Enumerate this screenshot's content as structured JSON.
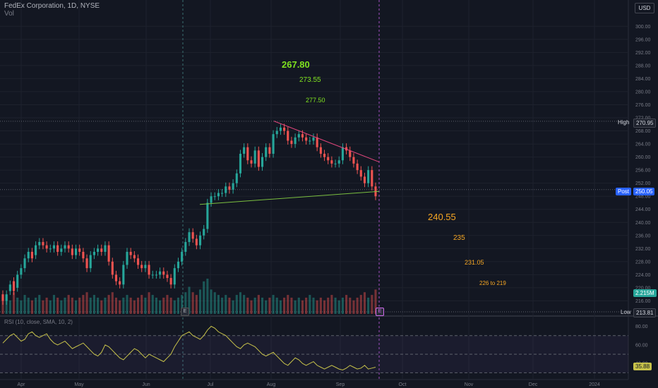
{
  "header": {
    "symbol_line": "FedEx Corporation, 1D, NYSE",
    "volume_label": "Vol",
    "currency_button": "USD"
  },
  "chart_data": {
    "type": "candlestick",
    "y_axis_labels": [
      "300.00",
      "296.00",
      "292.00",
      "288.00",
      "284.00",
      "280.00",
      "276.00",
      "272.00",
      "268.00",
      "264.00",
      "260.00",
      "256.00",
      "252.00",
      "248.00",
      "244.00",
      "240.00",
      "236.00",
      "232.00",
      "228.00",
      "224.00",
      "220.00",
      "216.00"
    ],
    "ylim": [
      212,
      302
    ],
    "x_axis_labels": [
      "Apr",
      "May",
      "Jun",
      "Jul",
      "Aug",
      "Sep",
      "Oct",
      "Nov",
      "Dec",
      "2024"
    ],
    "high_label": "High",
    "high_value": "270.95",
    "post_label": "Post",
    "post_value": "250.05",
    "volume_value": "2.215M",
    "low_label": "Low",
    "low_value": "213.81",
    "earnings_marker": "E",
    "candles_close": [
      216,
      218,
      221,
      219,
      224,
      226,
      229,
      231,
      229,
      233,
      234,
      233,
      232,
      232,
      233,
      231,
      232,
      233,
      232,
      230,
      232,
      231,
      229,
      226,
      230,
      231,
      232,
      231,
      233,
      228,
      224,
      222,
      221,
      227,
      231,
      230,
      229,
      227,
      226,
      227,
      224,
      224,
      224,
      225,
      224,
      223,
      221,
      226,
      228,
      231,
      234,
      237,
      235,
      233,
      236,
      238,
      246,
      248,
      248,
      249,
      249,
      251,
      250,
      252,
      255,
      261,
      263,
      259,
      258,
      262,
      257,
      260,
      263,
      261,
      267,
      268,
      269,
      268,
      265,
      264,
      266,
      267,
      266,
      265,
      265,
      266,
      263,
      261,
      260,
      259,
      258,
      258,
      259,
      263,
      262,
      260,
      258,
      256,
      254,
      252,
      256,
      251,
      248
    ],
    "candles_open": [
      218,
      216,
      219,
      222,
      220,
      224,
      226,
      229,
      231,
      230,
      233,
      234,
      233,
      232,
      232,
      233,
      231,
      232,
      233,
      232,
      230,
      232,
      231,
      229,
      226,
      230,
      231,
      232,
      231,
      233,
      228,
      224,
      222,
      221,
      227,
      231,
      230,
      229,
      227,
      226,
      227,
      224,
      224,
      224,
      225,
      224,
      223,
      221,
      226,
      228,
      231,
      234,
      237,
      235,
      233,
      236,
      238,
      246,
      248,
      248,
      249,
      249,
      251,
      250,
      252,
      255,
      261,
      263,
      259,
      258,
      262,
      257,
      260,
      263,
      261,
      267,
      268,
      269,
      268,
      265,
      264,
      266,
      267,
      266,
      265,
      265,
      266,
      263,
      261,
      260,
      259,
      258,
      258,
      259,
      263,
      262,
      260,
      258,
      256,
      254,
      252,
      256,
      251
    ],
    "volume": [
      0.6,
      0.7,
      0.5,
      0.8,
      0.6,
      0.5,
      0.7,
      0.6,
      0.5,
      0.6,
      0.7,
      0.5,
      0.6,
      0.5,
      0.7,
      0.6,
      0.5,
      0.6,
      0.7,
      0.6,
      0.5,
      0.6,
      0.7,
      0.8,
      0.6,
      0.7,
      0.6,
      0.5,
      0.6,
      0.7,
      0.8,
      0.6,
      0.5,
      0.6,
      0.7,
      0.6,
      0.5,
      0.6,
      0.7,
      0.6,
      0.8,
      0.7,
      0.6,
      0.5,
      0.6,
      0.7,
      0.6,
      0.5,
      0.6,
      0.7,
      0.8,
      1.0,
      0.8,
      0.7,
      0.9,
      1.2,
      1.3,
      0.9,
      0.8,
      0.7,
      0.6,
      0.7,
      0.6,
      0.5,
      0.7,
      0.8,
      0.7,
      0.6,
      0.5,
      0.6,
      0.7,
      0.6,
      0.5,
      0.6,
      0.7,
      0.6,
      0.5,
      0.6,
      0.7,
      0.6,
      0.5,
      0.6,
      0.5,
      0.6,
      0.7,
      0.6,
      0.5,
      0.6,
      0.5,
      0.6,
      0.7,
      0.6,
      0.5,
      0.6,
      0.7,
      0.6,
      0.5,
      0.6,
      0.7,
      0.8,
      0.6,
      0.7,
      0.9
    ],
    "rsi_axis_labels": [
      "80.00",
      "60.00",
      "40.00"
    ],
    "rsi_value": "35.88",
    "rsi_title": "RSI (10, close, SMA, 10, 2)",
    "rsi": [
      62,
      66,
      70,
      72,
      68,
      64,
      66,
      72,
      74,
      70,
      68,
      70,
      72,
      66,
      62,
      60,
      62,
      64,
      60,
      56,
      58,
      60,
      62,
      58,
      54,
      50,
      48,
      52,
      60,
      58,
      54,
      50,
      46,
      44,
      48,
      52,
      56,
      54,
      50,
      46,
      50,
      48,
      46,
      44,
      42,
      46,
      50,
      58,
      64,
      70,
      72,
      74,
      70,
      68,
      66,
      70,
      76,
      80,
      78,
      74,
      72,
      70,
      66,
      62,
      58,
      56,
      60,
      62,
      60,
      58,
      54,
      50,
      48,
      50,
      52,
      48,
      44,
      40,
      38,
      42,
      46,
      44,
      40,
      38,
      40,
      42,
      38,
      36,
      34,
      36,
      38,
      36,
      34,
      33,
      35,
      38,
      36,
      34,
      35,
      38,
      34,
      35,
      36
    ]
  },
  "targets_up": [
    "267.80",
    "273.55",
    "277.50"
  ],
  "targets_down": [
    "240.55",
    "235",
    "231.05",
    "226 to 219"
  ],
  "colors": {
    "bull": "#26a69a",
    "bear": "#ef5350",
    "upper_trend": "#e0457b",
    "lower_trend": "#7bbf40",
    "target_up": "#7fe21f",
    "target_down": "#f5a623"
  }
}
